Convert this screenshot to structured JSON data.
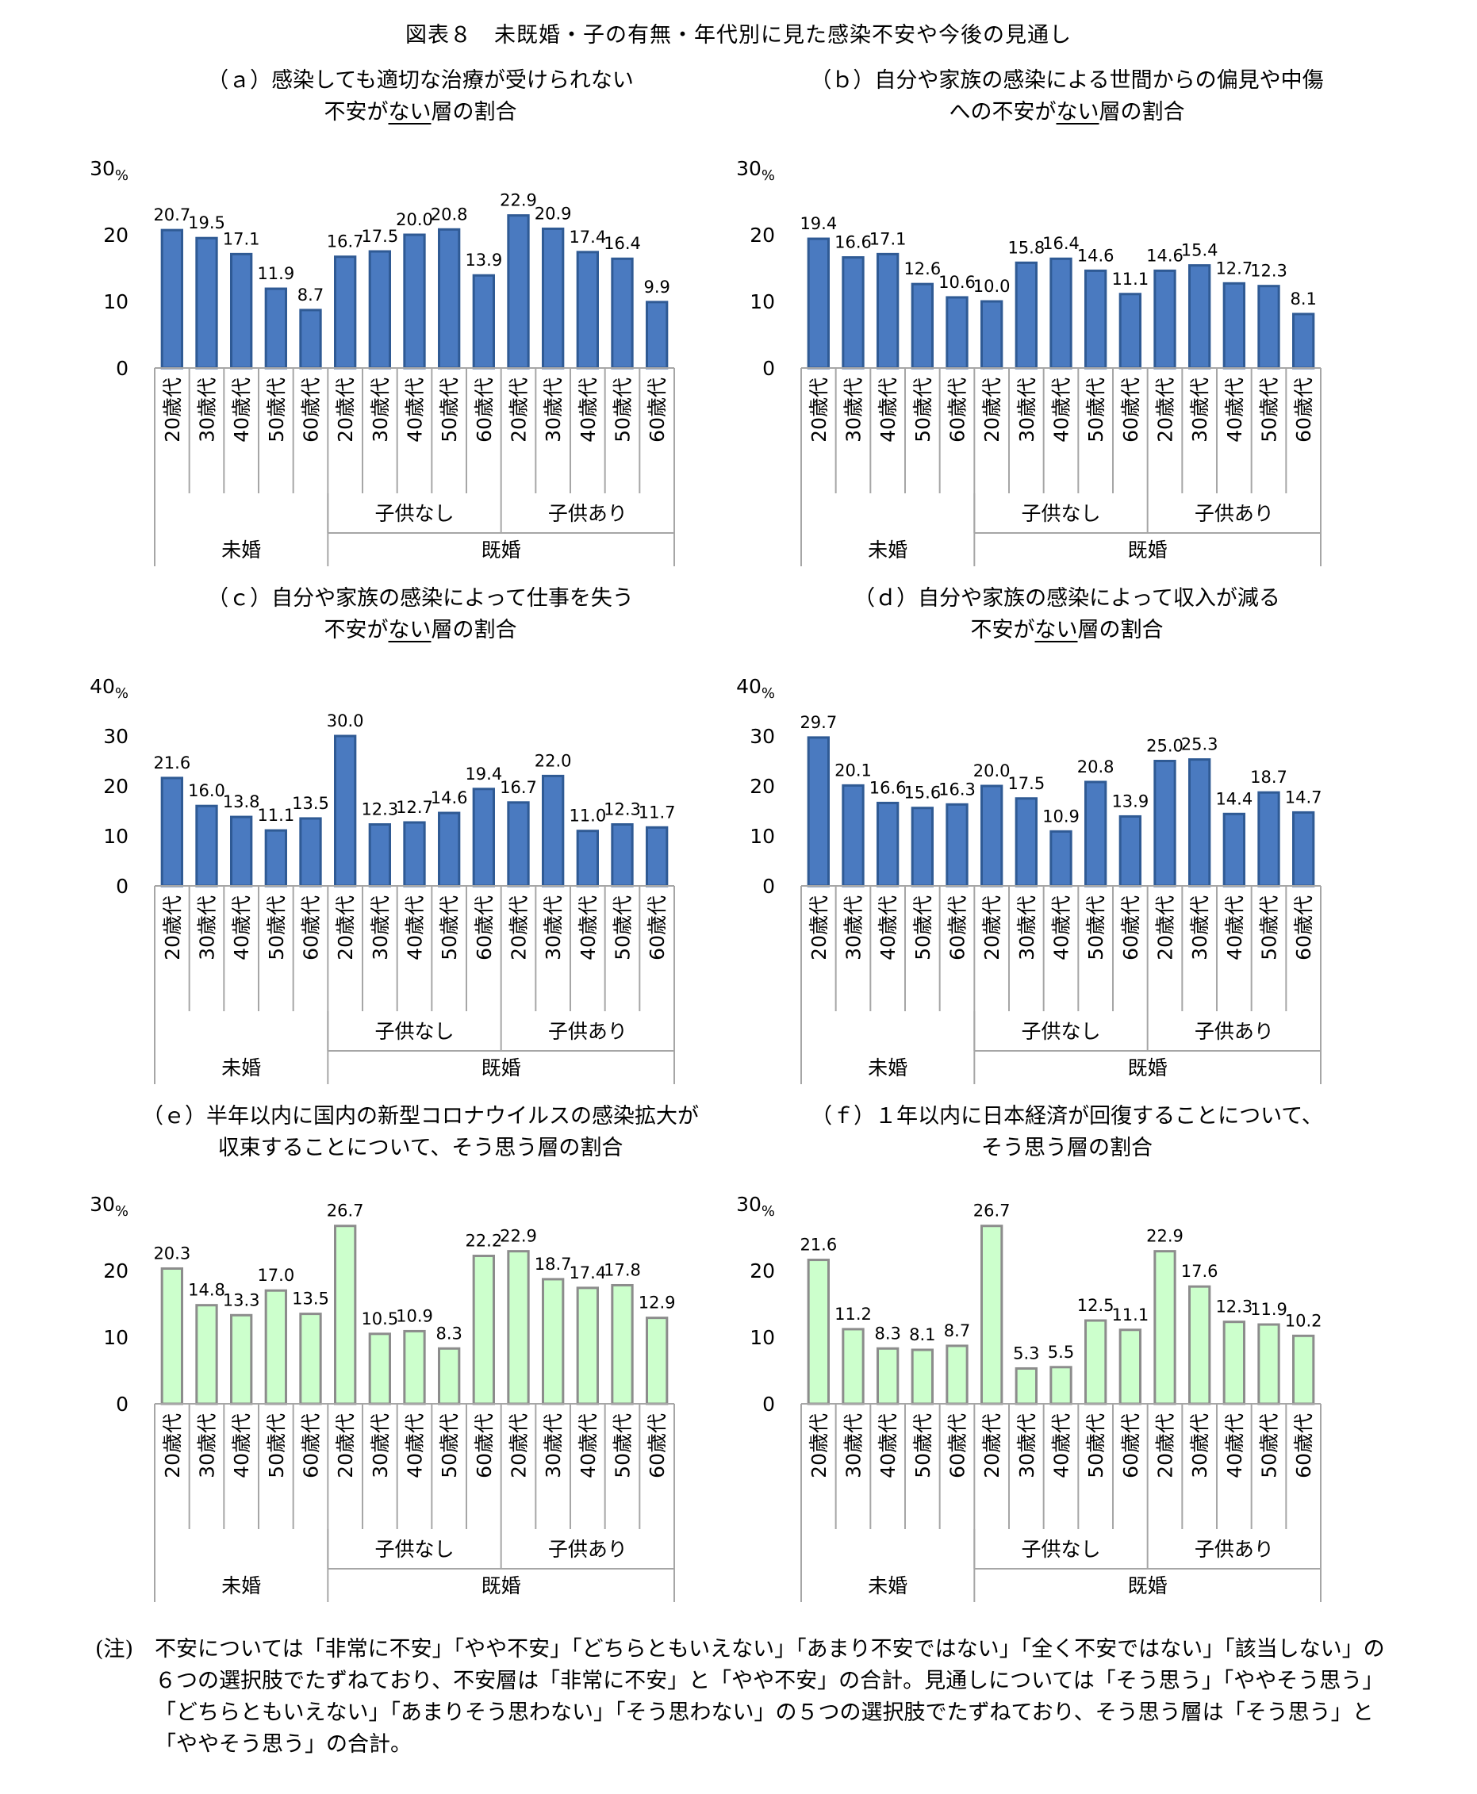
{
  "title": "図表８　未既婚・子の有無・年代別に見た感染不安や今後の見通し",
  "colors": {
    "blue": "#4a7ac0",
    "blue_edge": "#2f5a94",
    "green": "#ccffcc",
    "green_edge": "#8c8c8c",
    "axis": "#a6a6a6"
  },
  "chart_data": [
    {
      "type": "bar",
      "title_pre": "（ａ）感染しても適切な治療が受けられない\n不安が",
      "title_ul": "ない",
      "title_post": "層の割合",
      "categories": [
        "20歳代",
        "30歳代",
        "40歳代",
        "50歳代",
        "60歳代",
        "20歳代",
        "30歳代",
        "40歳代",
        "50歳代",
        "60歳代",
        "20歳代",
        "30歳代",
        "40歳代",
        "50歳代",
        "60歳代"
      ],
      "values": [
        20.7,
        19.5,
        17.1,
        11.9,
        8.7,
        16.7,
        17.5,
        20.0,
        20.8,
        13.9,
        22.9,
        20.9,
        17.4,
        16.4,
        9.9
      ],
      "value_labels": [
        "20.7",
        "19.5",
        "17.1",
        "11.9",
        "8.7",
        "16.7",
        "17.5",
        "20.0",
        "20.8",
        "13.9",
        "22.9",
        "20.9",
        "17.4",
        "16.4",
        "9.9"
      ],
      "ylim": [
        0,
        30
      ],
      "yticks": [
        "0",
        "10",
        "20",
        "30"
      ],
      "yunit": "%",
      "groups_l2": [
        {
          "label": "子供なし"
        },
        {
          "label": "子供あり"
        }
      ],
      "groups_l1": [
        {
          "label": "未婚"
        },
        {
          "label": "既婚"
        }
      ],
      "color": "blue"
    },
    {
      "type": "bar",
      "title_pre": "（ｂ）自分や家族の感染による世間からの偏見や中傷\nへの不安が",
      "title_ul": "ない",
      "title_post": "層の割合",
      "categories": [
        "20歳代",
        "30歳代",
        "40歳代",
        "50歳代",
        "60歳代",
        "20歳代",
        "30歳代",
        "40歳代",
        "50歳代",
        "60歳代",
        "20歳代",
        "30歳代",
        "40歳代",
        "50歳代",
        "60歳代"
      ],
      "values": [
        19.4,
        16.6,
        17.1,
        12.6,
        10.6,
        10.0,
        15.8,
        16.4,
        14.6,
        11.1,
        14.6,
        15.4,
        12.7,
        12.3,
        8.1
      ],
      "value_labels": [
        "19.4",
        "16.6",
        "17.1",
        "12.6",
        "10.6",
        "10.0",
        "15.8",
        "16.4",
        "14.6",
        "11.1",
        "14.6",
        "15.4",
        "12.7",
        "12.3",
        "8.1"
      ],
      "ylim": [
        0,
        30
      ],
      "yticks": [
        "0",
        "10",
        "20",
        "30"
      ],
      "yunit": "%",
      "groups_l2": [
        {
          "label": "子供なし"
        },
        {
          "label": "子供あり"
        }
      ],
      "groups_l1": [
        {
          "label": "未婚"
        },
        {
          "label": "既婚"
        }
      ],
      "color": "blue"
    },
    {
      "type": "bar",
      "title_pre": "（ｃ）自分や家族の感染によって仕事を失う\n不安が",
      "title_ul": "ない",
      "title_post": "層の割合",
      "categories": [
        "20歳代",
        "30歳代",
        "40歳代",
        "50歳代",
        "60歳代",
        "20歳代",
        "30歳代",
        "40歳代",
        "50歳代",
        "60歳代",
        "20歳代",
        "30歳代",
        "40歳代",
        "50歳代",
        "60歳代"
      ],
      "values": [
        21.6,
        16.0,
        13.8,
        11.1,
        13.5,
        30.0,
        12.3,
        12.7,
        14.6,
        19.4,
        16.7,
        22.0,
        11.0,
        12.3,
        11.7
      ],
      "value_labels": [
        "21.6",
        "16.0",
        "13.8",
        "11.1",
        "13.5",
        "30.0",
        "12.3",
        "12.7",
        "14.6",
        "19.4",
        "16.7",
        "22.0",
        "11.0",
        "12.3",
        "11.7"
      ],
      "ylim": [
        0,
        40
      ],
      "yticks": [
        "0",
        "10",
        "20",
        "30",
        "40"
      ],
      "yunit": "%",
      "groups_l2": [
        {
          "label": "子供なし"
        },
        {
          "label": "子供あり"
        }
      ],
      "groups_l1": [
        {
          "label": "未婚"
        },
        {
          "label": "既婚"
        }
      ],
      "color": "blue"
    },
    {
      "type": "bar",
      "title_pre": "（ｄ）自分や家族の感染によって収入が減る\n不安が",
      "title_ul": "ない",
      "title_post": "層の割合",
      "categories": [
        "20歳代",
        "30歳代",
        "40歳代",
        "50歳代",
        "60歳代",
        "20歳代",
        "30歳代",
        "40歳代",
        "50歳代",
        "60歳代",
        "20歳代",
        "30歳代",
        "40歳代",
        "50歳代",
        "60歳代"
      ],
      "values": [
        29.7,
        20.1,
        16.6,
        15.6,
        16.3,
        20.0,
        17.5,
        10.9,
        20.8,
        13.9,
        25.0,
        25.3,
        14.4,
        18.7,
        14.7
      ],
      "value_labels": [
        "29.7",
        "20.1",
        "16.6",
        "15.6",
        "16.3",
        "20.0",
        "17.5",
        "10.9",
        "20.8",
        "13.9",
        "25.0",
        "25.3",
        "14.4",
        "18.7",
        "14.7"
      ],
      "ylim": [
        0,
        40
      ],
      "yticks": [
        "0",
        "10",
        "20",
        "30",
        "40"
      ],
      "yunit": "%",
      "groups_l2": [
        {
          "label": "子供なし"
        },
        {
          "label": "子供あり"
        }
      ],
      "groups_l1": [
        {
          "label": "未婚"
        },
        {
          "label": "既婚"
        }
      ],
      "color": "blue"
    },
    {
      "type": "bar",
      "title_pre": "（ｅ）半年以内に国内の新型コロナウイルスの感染拡大が\n収束することについて、そう思う層の割合",
      "title_ul": "",
      "title_post": "",
      "categories": [
        "20歳代",
        "30歳代",
        "40歳代",
        "50歳代",
        "60歳代",
        "20歳代",
        "30歳代",
        "40歳代",
        "50歳代",
        "60歳代",
        "20歳代",
        "30歳代",
        "40歳代",
        "50歳代",
        "60歳代"
      ],
      "values": [
        20.3,
        14.8,
        13.3,
        17.0,
        13.5,
        26.7,
        10.5,
        10.9,
        8.3,
        22.2,
        22.9,
        18.7,
        17.4,
        17.8,
        12.9
      ],
      "value_labels": [
        "20.3",
        "14.8",
        "13.3",
        "17.0",
        "13.5",
        "26.7",
        "10.5",
        "10.9",
        "8.3",
        "22.2",
        "22.9",
        "18.7",
        "17.4",
        "17.8",
        "12.9"
      ],
      "ylim": [
        0,
        30
      ],
      "yticks": [
        "0",
        "10",
        "20",
        "30"
      ],
      "yunit": "%",
      "groups_l2": [
        {
          "label": "子供なし"
        },
        {
          "label": "子供あり"
        }
      ],
      "groups_l1": [
        {
          "label": "未婚"
        },
        {
          "label": "既婚"
        }
      ],
      "color": "green"
    },
    {
      "type": "bar",
      "title_pre": "（ｆ）１年以内に日本経済が回復することについて、\nそう思う層の割合",
      "title_ul": "",
      "title_post": "",
      "categories": [
        "20歳代",
        "30歳代",
        "40歳代",
        "50歳代",
        "60歳代",
        "20歳代",
        "30歳代",
        "40歳代",
        "50歳代",
        "60歳代",
        "20歳代",
        "30歳代",
        "40歳代",
        "50歳代",
        "60歳代"
      ],
      "values": [
        21.6,
        11.2,
        8.3,
        8.1,
        8.7,
        26.7,
        5.3,
        5.5,
        12.5,
        11.1,
        22.9,
        17.6,
        12.3,
        11.9,
        10.2
      ],
      "value_labels": [
        "21.6",
        "11.2",
        "8.3",
        "8.1",
        "8.7",
        "26.7",
        "5.3",
        "5.5",
        "12.5",
        "11.1",
        "22.9",
        "17.6",
        "12.3",
        "11.9",
        "10.2"
      ],
      "ylim": [
        0,
        30
      ],
      "yticks": [
        "0",
        "10",
        "20",
        "30"
      ],
      "yunit": "%",
      "groups_l2": [
        {
          "label": "子供なし"
        },
        {
          "label": "子供あり"
        }
      ],
      "groups_l1": [
        {
          "label": "未婚"
        },
        {
          "label": "既婚"
        }
      ],
      "color": "green"
    }
  ],
  "notes": {
    "label": "(注)",
    "text": "不安については「非常に不安」「やや不安」「どちらともいえない」「あまり不安ではない」「全く不安ではない」「該当しない」の６つの選択肢でたずねており、不安層は「非常に不安」と「やや不安」の合計。見通しについては「そう思う」「ややそう思う」「どちらともいえない」「あまりそう思わない」「そう思わない」の５つの選択肢でたずねており、そう思う層は「そう思う」と「ややそう思う」の合計。"
  }
}
